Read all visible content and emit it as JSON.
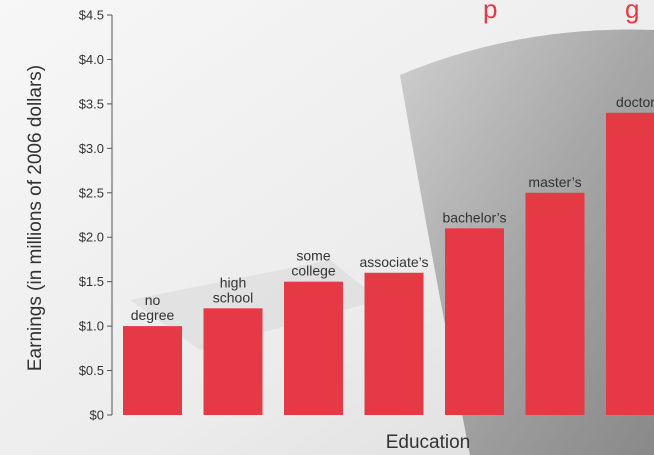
{
  "chart_data": {
    "type": "bar",
    "title_fragments": [
      "p",
      "g"
    ],
    "xlabel": "Education",
    "ylabel": "Earnings (in millions of 2006 dollars)",
    "ylim": [
      0,
      4.5
    ],
    "y_tick_values": [
      0,
      0.5,
      1.0,
      1.5,
      2.0,
      2.5,
      3.0,
      3.5,
      4.0,
      4.5
    ],
    "y_tick_labels": [
      "$0",
      "$0.5",
      "$1.0",
      "$1.5",
      "$2.0",
      "$2.5",
      "$3.0",
      "$3.5",
      "$4.0",
      "$4.5"
    ],
    "categories": [
      [
        "no",
        "degree"
      ],
      [
        "high",
        "school"
      ],
      [
        "some",
        "college"
      ],
      [
        "associate’s"
      ],
      [
        "bachelor’s"
      ],
      [
        "master’s"
      ],
      [
        "doctor"
      ]
    ],
    "values": [
      1.0,
      1.2,
      1.5,
      1.6,
      2.1,
      2.5,
      3.4
    ],
    "colors": {
      "bar": "#e63946",
      "text": "#333333",
      "axis": "#555555"
    }
  }
}
